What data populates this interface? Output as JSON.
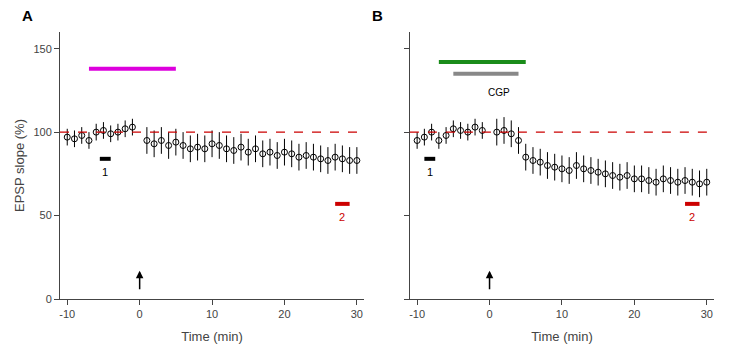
{
  "chart_data": [
    {
      "type": "scatter",
      "title": "A",
      "marker": "circle_open",
      "color": "#000000",
      "grid": false,
      "x": [
        -10,
        -9,
        -8,
        -7,
        -6,
        -5,
        -4,
        -3,
        -2,
        -1,
        1,
        2,
        3,
        4,
        5,
        6,
        7,
        8,
        9,
        10,
        11,
        12,
        13,
        14,
        15,
        16,
        17,
        18,
        19,
        20,
        21,
        22,
        23,
        24,
        25,
        26,
        27,
        28,
        29,
        30
      ],
      "values": [
        97,
        96,
        98,
        95,
        100,
        101,
        99,
        100,
        102,
        103,
        95,
        93,
        95,
        92,
        94,
        92,
        90,
        91,
        90,
        93,
        92,
        90,
        89,
        91,
        88,
        90,
        87,
        88,
        86,
        88,
        87,
        85,
        86,
        85,
        84,
        83,
        85,
        84,
        83,
        83
      ],
      "errors": [
        5,
        5,
        5,
        5,
        5,
        5,
        5,
        5,
        5,
        5,
        8,
        8,
        8,
        8,
        8,
        8,
        8,
        8,
        8,
        8,
        8,
        8,
        8,
        8,
        8,
        8,
        8,
        8,
        8,
        8,
        8,
        8,
        8,
        8,
        8,
        8,
        8,
        8,
        8,
        8
      ],
      "xlim": [
        -11,
        31
      ],
      "xticks": [
        -10,
        0,
        10,
        20,
        30
      ],
      "ylim": [
        0,
        160
      ],
      "yticks": [
        0,
        50,
        100,
        150
      ],
      "xlabel": "Time (min)",
      "ylabel": "EPSP slope (%)",
      "reference_line": {
        "y": 100,
        "color": "#cc0000",
        "line_style": "dashed"
      },
      "bars": [
        {
          "x": [
            -7,
            5
          ],
          "y": 138,
          "color": "#dd00dd"
        },
        {
          "x": [
            -5.5,
            -4.0
          ],
          "y": 84,
          "color": "#000000",
          "label": "1"
        },
        {
          "x": [
            27.0,
            29.0
          ],
          "y": 57,
          "color": "#cc0000",
          "label": "2"
        }
      ],
      "arrow": {
        "x": 0,
        "y_base": 5,
        "y_tip": 17
      }
    },
    {
      "type": "scatter",
      "title": "B",
      "marker": "circle_open",
      "color": "#000000",
      "grid": false,
      "tick_labels": "x",
      "x": [
        -10,
        -9,
        -8,
        -7,
        -6,
        -5,
        -4,
        -3,
        -2,
        -1,
        1,
        2,
        3,
        4,
        5,
        6,
        7,
        8,
        9,
        10,
        11,
        12,
        13,
        14,
        15,
        16,
        17,
        18,
        19,
        20,
        21,
        22,
        23,
        24,
        25,
        26,
        27,
        28,
        29,
        30
      ],
      "values": [
        95,
        97,
        100,
        95,
        98,
        102,
        101,
        100,
        103,
        101,
        100,
        101,
        99,
        95,
        85,
        83,
        82,
        80,
        79,
        78,
        77,
        80,
        78,
        77,
        76,
        75,
        74,
        73,
        74,
        72,
        72,
        71,
        70,
        72,
        71,
        70,
        71,
        70,
        69,
        70
      ],
      "errors": [
        5,
        5,
        5,
        5,
        5,
        5,
        5,
        5,
        5,
        5,
        8,
        8,
        8,
        8,
        8,
        8,
        8,
        8,
        8,
        8,
        8,
        8,
        8,
        8,
        8,
        8,
        8,
        8,
        8,
        8,
        8,
        8,
        8,
        8,
        8,
        8,
        8,
        8,
        8,
        8
      ],
      "xlim": [
        -11,
        31
      ],
      "xticks": [
        -10,
        0,
        10,
        20,
        30
      ],
      "ylim": [
        0,
        160
      ],
      "yticks": [
        0,
        50,
        100,
        150
      ],
      "xlabel": "Time (min)",
      "reference_line": {
        "y": 100,
        "color": "#cc0000",
        "line_style": "dashed"
      },
      "bars": [
        {
          "x": [
            -7,
            5
          ],
          "y": 142,
          "color": "#1a8c1a"
        },
        {
          "x": [
            -5,
            4
          ],
          "y": 135,
          "color": "#888888"
        },
        {
          "x": [
            -9.0,
            -7.5
          ],
          "y": 84,
          "color": "#000000",
          "label": "1"
        },
        {
          "x": [
            27.0,
            29.0
          ],
          "y": 57,
          "color": "#cc0000",
          "label": "2"
        }
      ],
      "annotations": [
        {
          "text": "CGP",
          "x": -0.5,
          "y": 128
        }
      ],
      "arrow": {
        "x": 0,
        "y_base": 5,
        "y_tip": 17
      }
    }
  ]
}
